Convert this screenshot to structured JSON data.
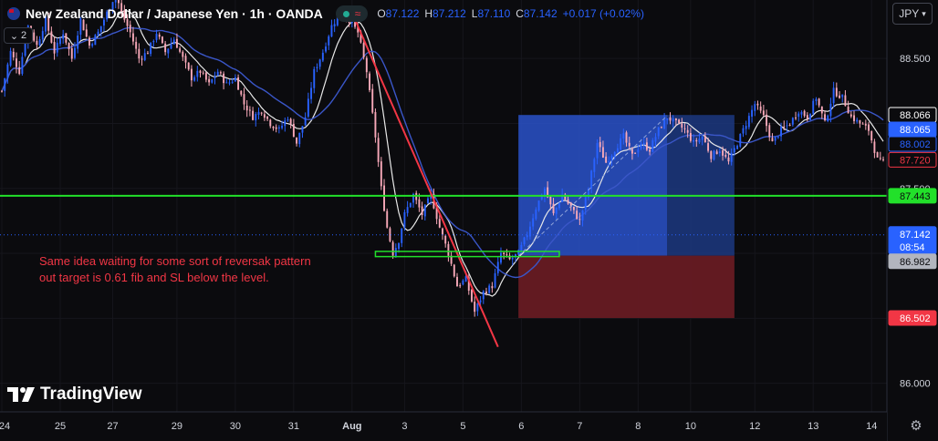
{
  "header": {
    "symbol_title": "New Zealand Dollar / Japanese Yen · 1h · OANDA",
    "approx_symbol": "≈",
    "ohlc": [
      {
        "k": "O",
        "v": "87.122"
      },
      {
        "k": "H",
        "v": "87.212"
      },
      {
        "k": "L",
        "v": "87.110"
      },
      {
        "k": "C",
        "v": "87.142"
      }
    ],
    "change": "+0.017 (+0.02%)",
    "currency": "JPY",
    "indicator_toggle": "2"
  },
  "annotation": {
    "line1": "Same idea waiting for some sort of reversak pattern",
    "line2": "out target is 0.61 fib and SL below the level."
  },
  "branding": {
    "logo_text": "TradingView"
  },
  "colors": {
    "background": "#0b0b0e",
    "up_candle": "#2962ff",
    "down_candle": "#f7a8b8",
    "ma_fast": "#e8e8e8",
    "ma_slow": "#3a56c8",
    "trendline": "#f23645",
    "level_line": "#22e02a",
    "target_zone": "#2a52c9",
    "stop_zone": "#6b1c24"
  },
  "chart_data": {
    "type": "candlestick",
    "symbol": "NZDJPY",
    "interval": "1h",
    "y_axis": {
      "ylim": [
        85.78,
        88.95
      ],
      "ticks": [
        86.0,
        86.5,
        87.0,
        87.5,
        88.0,
        88.5
      ],
      "tick_labels": [
        "86.000",
        "86.500",
        "87.000",
        "87.500",
        "88.000",
        "88.500"
      ]
    },
    "x_axis": {
      "tick_labels": [
        "24",
        "25",
        "27",
        "29",
        "30",
        "31",
        "Aug",
        "3",
        "5",
        "6",
        "7",
        "8",
        "10",
        "12",
        "13",
        "14"
      ],
      "tick_index": [
        0,
        20,
        38,
        60,
        80,
        100,
        120,
        138,
        158,
        178,
        198,
        218,
        236,
        258,
        278,
        298
      ]
    },
    "price_tags": [
      {
        "label": "88.066",
        "value": 88.066,
        "style": "outline"
      },
      {
        "label": "88.065",
        "value": 88.065,
        "style": "blue"
      },
      {
        "label": "88.002",
        "value": 88.002,
        "style": "blue-outline"
      },
      {
        "label": "87.720",
        "value": 87.72,
        "style": "red-outline"
      },
      {
        "label": "87.443",
        "value": 87.443,
        "style": "green"
      },
      {
        "label": "87.142",
        "value": 87.142,
        "style": "blue-countdown",
        "sub": "08:54"
      },
      {
        "label": "86.982",
        "value": 86.982,
        "style": "grey"
      },
      {
        "label": "86.502",
        "value": 86.502,
        "style": "red"
      }
    ],
    "horizontal_level": 87.443,
    "current_price": 87.142,
    "key_level_box": {
      "from_index": 128,
      "to_index": 191,
      "top": 87.015,
      "bottom": 86.975
    },
    "trendline": {
      "from": {
        "index": 121,
        "price": 88.8
      },
      "to": {
        "index": 170,
        "price": 86.28
      }
    },
    "long_position": {
      "from_index": 177,
      "to_index": 251,
      "entry": 86.982,
      "target": 88.065,
      "stop": 86.502,
      "filled_until_index": 228
    },
    "ohlc_path": [
      [
        0,
        88.25
      ],
      [
        3,
        88.55
      ],
      [
        6,
        88.4
      ],
      [
        9,
        88.75
      ],
      [
        12,
        88.6
      ],
      [
        15,
        88.8
      ],
      [
        18,
        88.55
      ],
      [
        21,
        88.7
      ],
      [
        24,
        88.5
      ],
      [
        27,
        88.8
      ],
      [
        30,
        88.6
      ],
      [
        33,
        88.7
      ],
      [
        36,
        88.85
      ],
      [
        39,
        89.0
      ],
      [
        41,
        88.85
      ],
      [
        44,
        88.7
      ],
      [
        47,
        88.5
      ],
      [
        50,
        88.55
      ],
      [
        53,
        88.7
      ],
      [
        56,
        88.55
      ],
      [
        59,
        88.65
      ],
      [
        62,
        88.5
      ],
      [
        65,
        88.35
      ],
      [
        68,
        88.4
      ],
      [
        71,
        88.3
      ],
      [
        74,
        88.4
      ],
      [
        77,
        88.3
      ],
      [
        80,
        88.35
      ],
      [
        83,
        88.15
      ],
      [
        86,
        88.05
      ],
      [
        89,
        88.1
      ],
      [
        92,
        88.0
      ],
      [
        95,
        87.95
      ],
      [
        98,
        88.05
      ],
      [
        101,
        87.85
      ],
      [
        104,
        88.05
      ],
      [
        107,
        88.4
      ],
      [
        110,
        88.55
      ],
      [
        113,
        88.75
      ],
      [
        116,
        88.85
      ],
      [
        119,
        88.8
      ],
      [
        122,
        88.7
      ],
      [
        125,
        88.4
      ],
      [
        128,
        87.9
      ],
      [
        130,
        87.5
      ],
      [
        132,
        87.2
      ],
      [
        134,
        87.0
      ],
      [
        136,
        87.1
      ],
      [
        138,
        87.3
      ],
      [
        141,
        87.45
      ],
      [
        144,
        87.3
      ],
      [
        147,
        87.45
      ],
      [
        150,
        87.2
      ],
      [
        153,
        87.0
      ],
      [
        156,
        86.75
      ],
      [
        159,
        86.8
      ],
      [
        162,
        86.55
      ],
      [
        165,
        86.7
      ],
      [
        168,
        86.75
      ],
      [
        171,
        87.0
      ],
      [
        174,
        86.95
      ],
      [
        177,
        87.0
      ],
      [
        180,
        87.15
      ],
      [
        183,
        87.35
      ],
      [
        186,
        87.5
      ],
      [
        189,
        87.3
      ],
      [
        192,
        87.45
      ],
      [
        195,
        87.35
      ],
      [
        198,
        87.25
      ],
      [
        201,
        87.5
      ],
      [
        204,
        87.85
      ],
      [
        207,
        87.7
      ],
      [
        210,
        87.8
      ],
      [
        213,
        87.9
      ],
      [
        216,
        87.75
      ],
      [
        219,
        87.85
      ],
      [
        222,
        87.8
      ],
      [
        225,
        87.95
      ],
      [
        228,
        88.05
      ],
      [
        231,
        88.0
      ],
      [
        234,
        87.95
      ],
      [
        237,
        87.85
      ],
      [
        240,
        87.9
      ],
      [
        243,
        87.75
      ],
      [
        246,
        87.8
      ],
      [
        249,
        87.7
      ],
      [
        252,
        87.85
      ],
      [
        255,
        88.0
      ],
      [
        258,
        88.15
      ],
      [
        261,
        88.05
      ],
      [
        264,
        87.85
      ],
      [
        267,
        87.95
      ],
      [
        270,
        88.0
      ],
      [
        273,
        88.1
      ],
      [
        276,
        88.05
      ],
      [
        279,
        88.2
      ],
      [
        282,
        88.0
      ],
      [
        285,
        88.25
      ],
      [
        288,
        88.2
      ],
      [
        291,
        88.05
      ],
      [
        294,
        88.0
      ],
      [
        297,
        87.95
      ],
      [
        300,
        87.72
      ],
      [
        302,
        87.7
      ]
    ]
  }
}
